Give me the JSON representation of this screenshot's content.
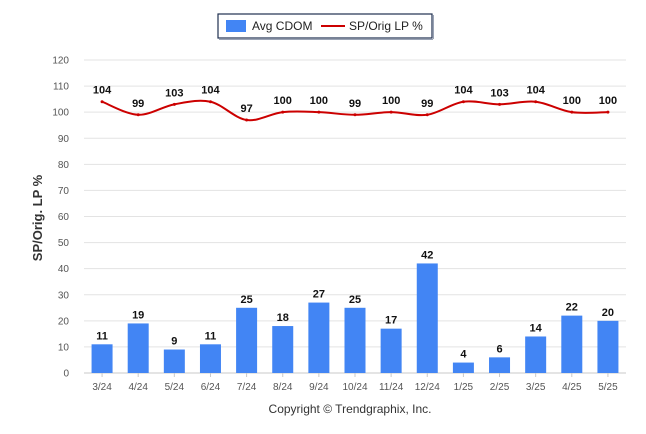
{
  "chart_data": {
    "type": "bar",
    "categories": [
      "3/24",
      "4/24",
      "5/24",
      "6/24",
      "7/24",
      "8/24",
      "9/24",
      "10/24",
      "11/24",
      "12/24",
      "1/25",
      "2/25",
      "3/25",
      "4/25",
      "5/25"
    ],
    "series": [
      {
        "name": "Avg CDOM",
        "type": "bar",
        "color": "#4285f4",
        "values": [
          11,
          19,
          9,
          11,
          25,
          18,
          27,
          25,
          17,
          42,
          4,
          6,
          14,
          22,
          20
        ]
      },
      {
        "name": "SP/Orig LP %",
        "type": "line",
        "color": "#cc0000",
        "values": [
          104,
          99,
          103,
          104,
          97,
          100,
          100,
          99,
          100,
          99,
          104,
          103,
          104,
          100,
          100
        ]
      }
    ],
    "ylabel": "SP/Orig. LP %",
    "ylim": [
      0,
      120
    ],
    "yticks": [
      0,
      10,
      20,
      30,
      40,
      50,
      60,
      70,
      80,
      90,
      100,
      110,
      120
    ],
    "grid": true,
    "legend_position": "top-center"
  },
  "footer": "Copyright © Trendgraphix, Inc."
}
